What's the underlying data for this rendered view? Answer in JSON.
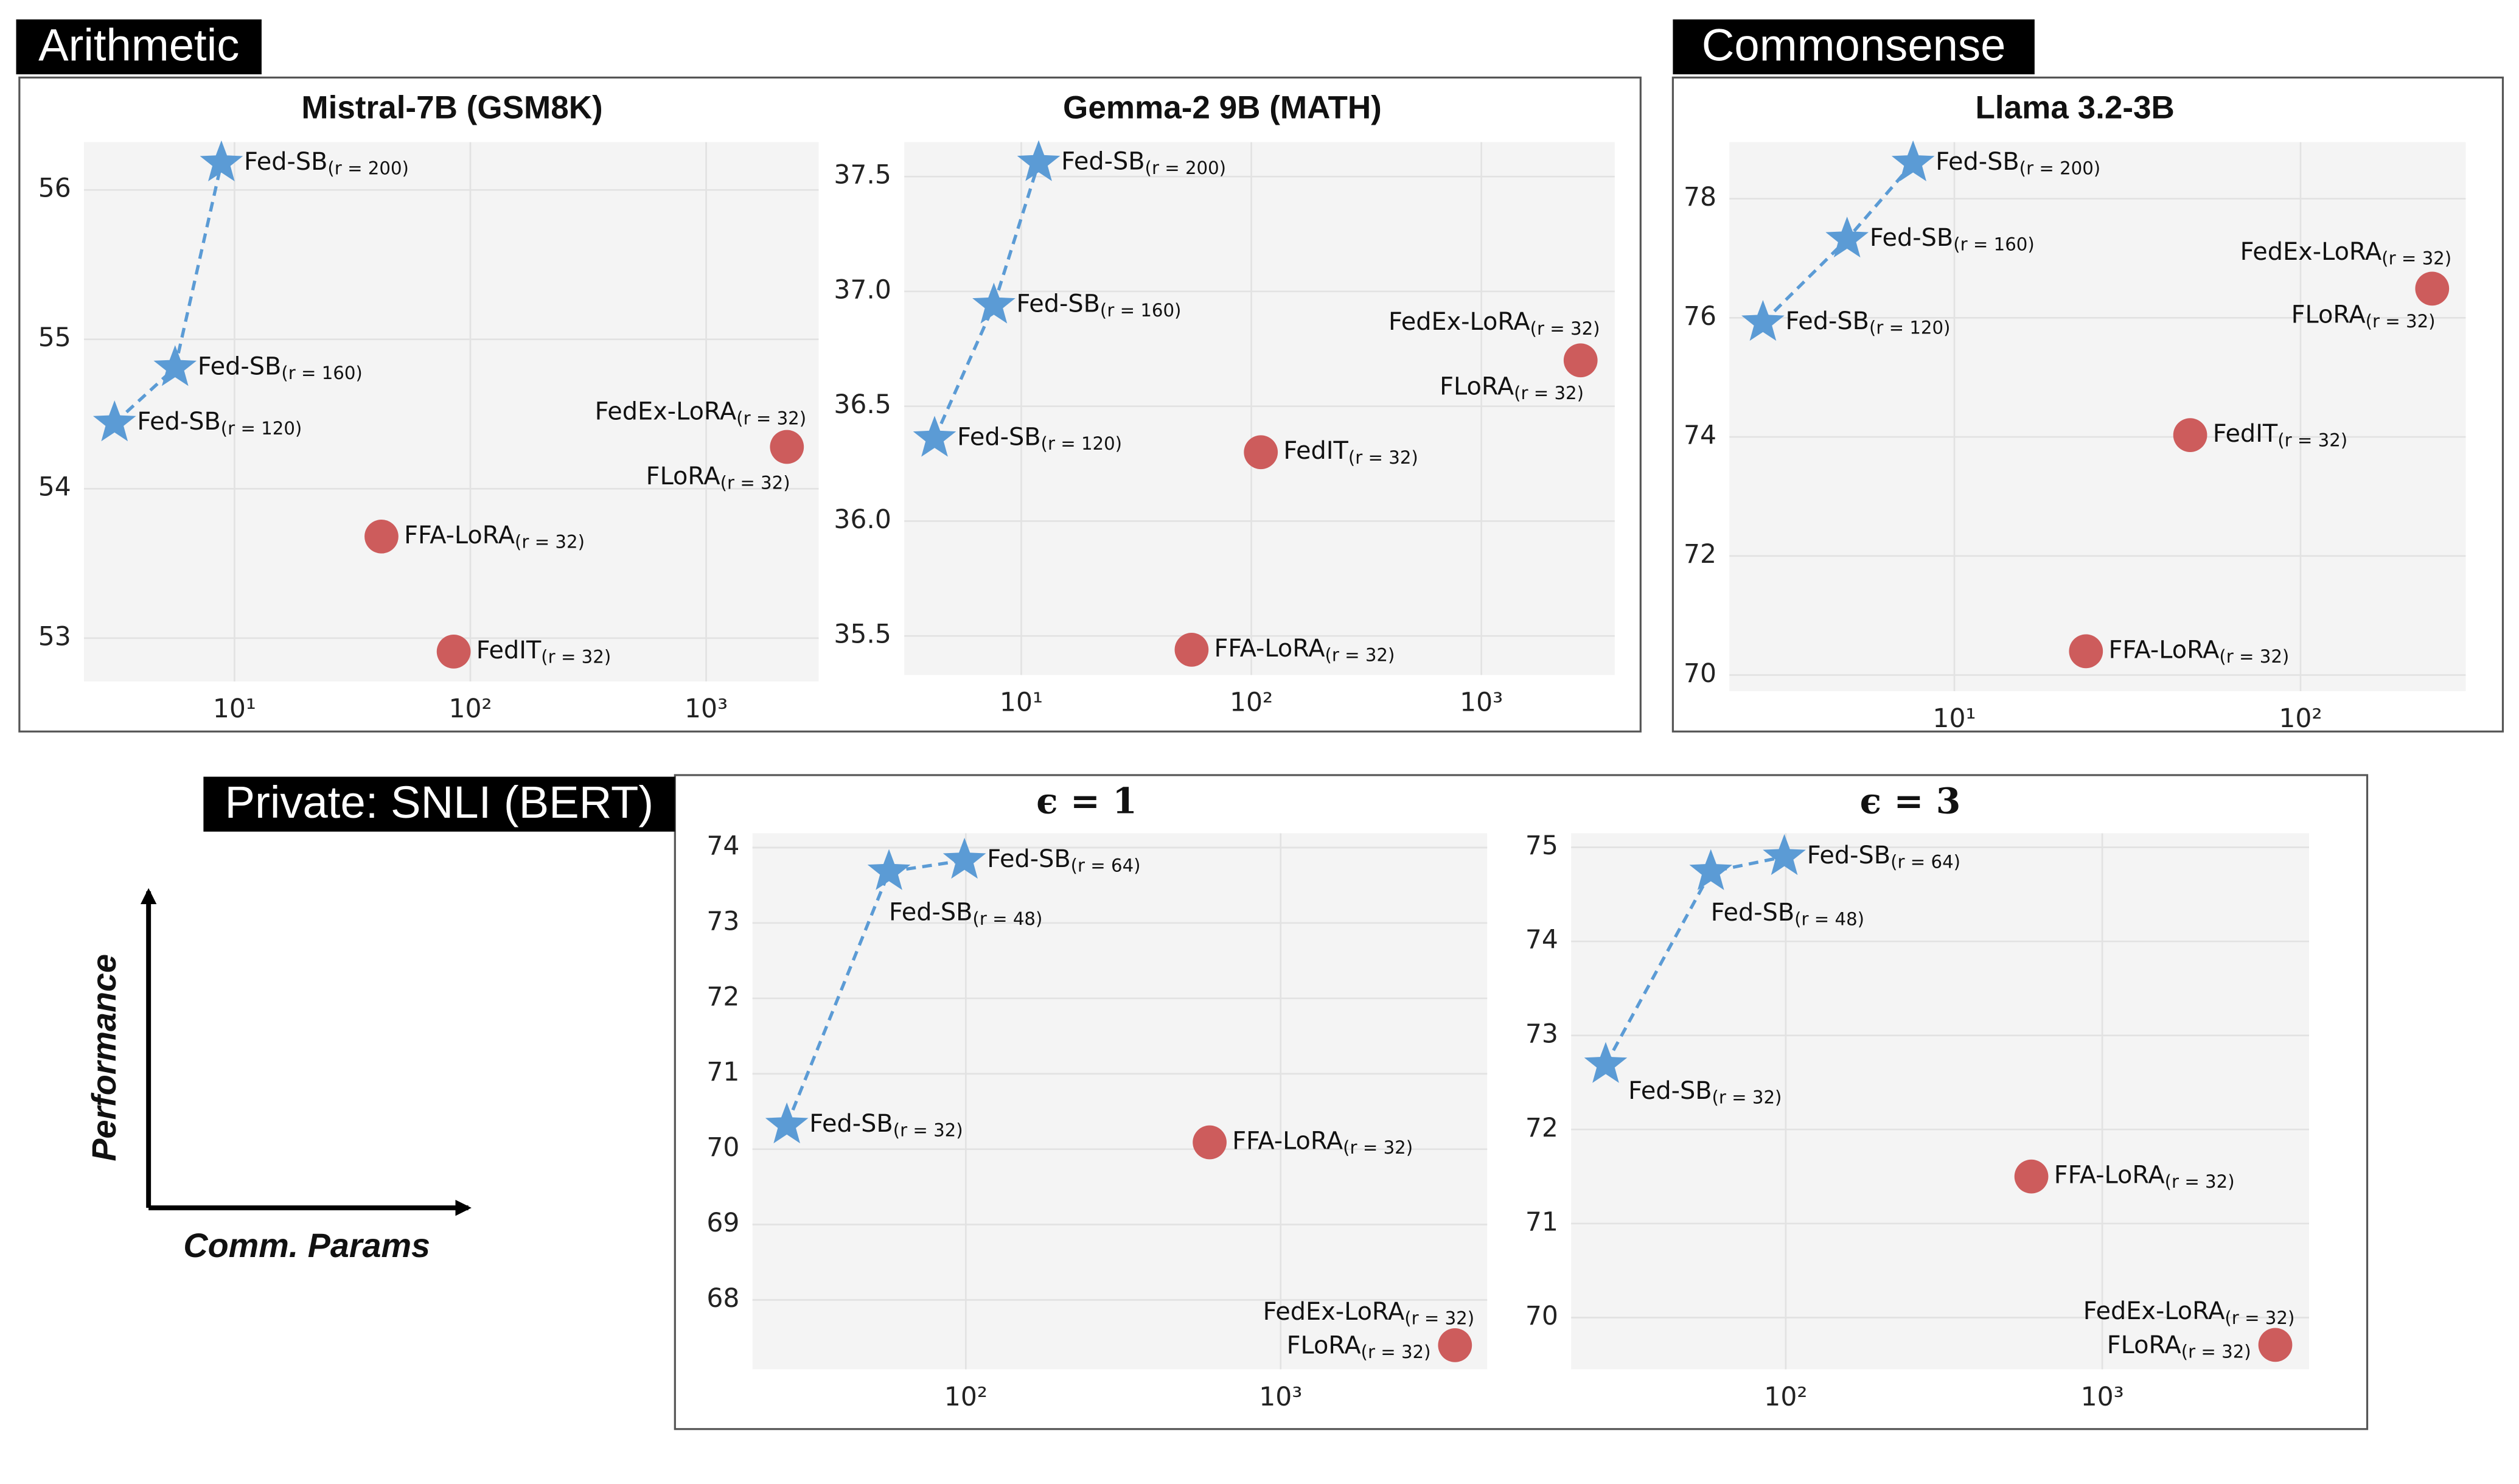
{
  "sections": [
    "Arithmetic",
    "Commonsense",
    "Private: SNLI (BERT)"
  ],
  "schematic": {
    "y_label": "Performance",
    "x_label": "Comm. Params"
  },
  "chart_data": [
    {
      "type": "scatter",
      "title": "Mistral-7B (GSM8K)",
      "xscale": "log",
      "grid": true,
      "xlim": [
        2.3,
        3000
      ],
      "ylim": [
        52.71,
        56.32
      ],
      "xticks": [
        {
          "value": 10,
          "label": "10¹"
        },
        {
          "value": 100,
          "label": "10²"
        },
        {
          "value": 1000,
          "label": "10³"
        }
      ],
      "yticks": [
        53,
        54,
        55,
        56
      ],
      "series": [
        {
          "marker": "star",
          "line": "dashed",
          "color": "#5b9bd5",
          "x": [
            3.1,
            5.6,
            8.8
          ],
          "values": [
            54.44,
            54.81,
            56.18
          ],
          "point_labels": [
            [
              {
                "text": "Fed-SB",
                "sub": "(r = 120)"
              }
            ],
            [
              {
                "text": "Fed-SB",
                "sub": "(r = 160)"
              }
            ],
            [
              {
                "text": "Fed-SB",
                "sub": "(r = 200)"
              }
            ]
          ]
        },
        {
          "marker": "circle",
          "color": "#cd5c5c",
          "x": [
            42,
            85,
            2200
          ],
          "values": [
            53.68,
            52.91,
            54.28
          ],
          "point_labels": [
            [
              {
                "text": "FFA-LoRA",
                "sub": "(r = 32)"
              }
            ],
            [
              {
                "text": "FedIT",
                "sub": "(r = 32)"
              }
            ],
            [
              {
                "text": "FedEx-LoRA",
                "sub": "(r = 32)"
              },
              {
                "text": "FLoRA",
                "sub": "(r = 32)"
              }
            ]
          ]
        }
      ]
    },
    {
      "type": "scatter",
      "title": "Gemma-2 9B (MATH)",
      "xscale": "log",
      "grid": true,
      "xlim": [
        3.1,
        3800
      ],
      "ylim": [
        35.33,
        37.65
      ],
      "xticks": [
        {
          "value": 10,
          "label": "10¹"
        },
        {
          "value": 100,
          "label": "10²"
        },
        {
          "value": 1000,
          "label": "10³"
        }
      ],
      "yticks": [
        35.5,
        {
          "value": 36,
          "label": "36.0"
        },
        36.5,
        {
          "value": 37,
          "label": "37.0"
        },
        37.5
      ],
      "series": [
        {
          "marker": "star",
          "line": "dashed",
          "color": "#5b9bd5",
          "x": [
            4.2,
            7.6,
            11.9
          ],
          "values": [
            36.36,
            36.94,
            37.56
          ],
          "point_labels": [
            [
              {
                "text": "Fed-SB",
                "sub": "(r = 120)"
              }
            ],
            [
              {
                "text": "Fed-SB",
                "sub": "(r = 160)"
              }
            ],
            [
              {
                "text": "Fed-SB",
                "sub": "(r = 200)"
              }
            ]
          ]
        },
        {
          "marker": "circle",
          "color": "#cd5c5c",
          "x": [
            55,
            110,
            2700
          ],
          "values": [
            35.44,
            36.3,
            36.7
          ],
          "point_labels": [
            [
              {
                "text": "FFA-LoRA",
                "sub": "(r = 32)"
              }
            ],
            [
              {
                "text": "FedIT",
                "sub": "(r = 32)"
              }
            ],
            [
              {
                "text": "FedEx-LoRA",
                "sub": "(r = 32)"
              },
              {
                "text": "FLoRA",
                "sub": "(r = 32)"
              }
            ]
          ]
        }
      ]
    },
    {
      "type": "scatter",
      "title": "Llama 3.2-3B",
      "xscale": "log",
      "grid": true,
      "xlim": [
        2.24,
        300
      ],
      "ylim": [
        69.73,
        78.95
      ],
      "xticks": [
        {
          "value": 10,
          "label": "10¹"
        },
        {
          "value": 100,
          "label": "10²"
        }
      ],
      "yticks": [
        70,
        72,
        74,
        76,
        78
      ],
      "series": [
        {
          "marker": "star",
          "line": "dashed",
          "color": "#5b9bd5",
          "x": [
            2.8,
            4.9,
            7.6
          ],
          "values": [
            75.92,
            77.32,
            78.6
          ],
          "point_labels": [
            [
              {
                "text": "Fed-SB",
                "sub": "(r = 120)"
              }
            ],
            [
              {
                "text": "Fed-SB",
                "sub": "(r = 160)"
              }
            ],
            [
              {
                "text": "Fed-SB",
                "sub": "(r = 200)"
              }
            ]
          ]
        },
        {
          "marker": "circle",
          "color": "#cd5c5c",
          "x": [
            24,
            48,
            240
          ],
          "values": [
            70.4,
            74.03,
            76.49
          ],
          "point_labels": [
            [
              {
                "text": "FFA-LoRA",
                "sub": "(r = 32)"
              }
            ],
            [
              {
                "text": "FedIT",
                "sub": "(r = 32)"
              }
            ],
            [
              {
                "text": "FedEx-LoRA",
                "sub": "(r = 32)"
              },
              {
                "text": "FLoRA",
                "sub": "(r = 32)"
              }
            ]
          ]
        }
      ]
    },
    {
      "type": "scatter",
      "title": "ϵ = 1",
      "xscale": "log",
      "grid": true,
      "xlim": [
        21,
        4530
      ],
      "ylim": [
        67.08,
        74.19
      ],
      "xticks": [
        {
          "value": 100,
          "label": "10²"
        },
        {
          "value": 1000,
          "label": "10³"
        }
      ],
      "yticks": [
        68,
        69,
        70,
        71,
        72,
        73,
        74
      ],
      "series": [
        {
          "marker": "star",
          "line": "dashed",
          "color": "#5b9bd5",
          "x": [
            27,
            57,
            99
          ],
          "values": [
            70.32,
            73.68,
            73.83
          ],
          "point_labels": [
            [
              {
                "text": "Fed-SB",
                "sub": "(r = 32)"
              }
            ],
            [
              {
                "text": "Fed-SB",
                "sub": "(r = 48)"
              }
            ],
            [
              {
                "text": "Fed-SB",
                "sub": "(r = 64)"
              }
            ]
          ]
        },
        {
          "marker": "circle",
          "color": "#cd5c5c",
          "x": [
            595,
            3580
          ],
          "values": [
            70.09,
            67.4
          ],
          "point_labels": [
            [
              {
                "text": "FFA-LoRA",
                "sub": "(r = 32)"
              }
            ],
            [
              {
                "text": "FedEx-LoRA",
                "sub": "(r = 32)"
              },
              {
                "text": "FLoRA",
                "sub": "(r = 32)"
              }
            ]
          ]
        }
      ]
    },
    {
      "type": "scatter",
      "title": "ϵ = 3",
      "xscale": "log",
      "grid": true,
      "xlim": [
        21,
        4500
      ],
      "ylim": [
        69.45,
        75.15
      ],
      "xticks": [
        {
          "value": 100,
          "label": "10²"
        },
        {
          "value": 1000,
          "label": "10³"
        }
      ],
      "yticks": [
        70,
        71,
        72,
        73,
        74,
        75
      ],
      "series": [
        {
          "marker": "star",
          "line": "dashed",
          "color": "#5b9bd5",
          "x": [
            27,
            58,
            99
          ],
          "values": [
            72.69,
            74.74,
            74.9
          ],
          "point_labels": [
            [
              {
                "text": "Fed-SB",
                "sub": "(r = 32)"
              }
            ],
            [
              {
                "text": "Fed-SB",
                "sub": "(r = 48)"
              }
            ],
            [
              {
                "text": "Fed-SB",
                "sub": "(r = 64)"
              }
            ]
          ]
        },
        {
          "marker": "circle",
          "color": "#cd5c5c",
          "x": [
            597,
            3520
          ],
          "values": [
            71.5,
            69.71
          ],
          "point_labels": [
            [
              {
                "text": "FFA-LoRA",
                "sub": "(r = 32)"
              }
            ],
            [
              {
                "text": "FedEx-LoRA",
                "sub": "(r = 32)"
              },
              {
                "text": "FLoRA",
                "sub": "(r = 32)"
              }
            ]
          ]
        }
      ]
    }
  ]
}
